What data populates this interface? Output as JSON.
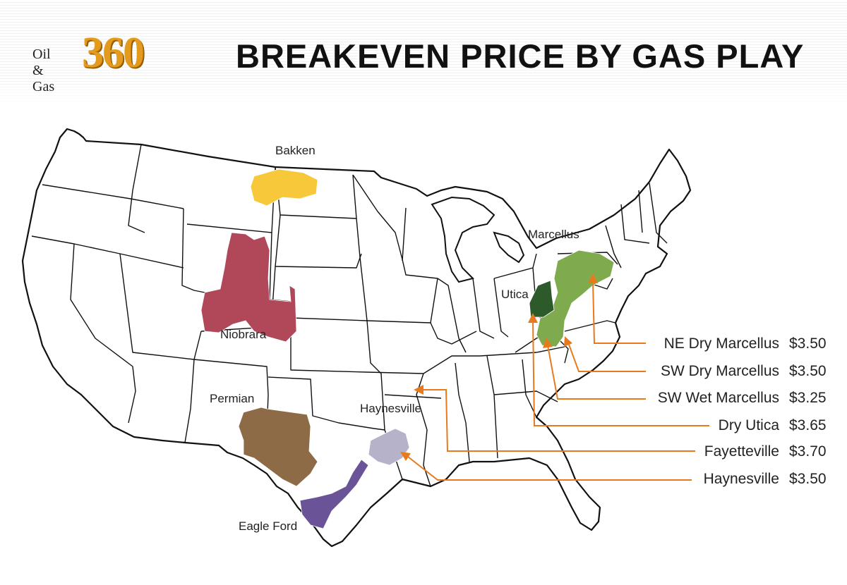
{
  "header": {
    "logo_small": "Oil & Gas",
    "logo_big": "360",
    "title": "BREAKEVEN PRICE BY GAS PLAY"
  },
  "colors": {
    "bakken": "#f7c83a",
    "niobrara": "#b0485a",
    "permian": "#8e6b47",
    "eagle_ford": "#6a5497",
    "haynesville": "#b5b2c9",
    "marcellus": "#7faa4e",
    "utica": "#2d5a2a",
    "arrow": "#e87a1e",
    "state_line": "#111111"
  },
  "map_labels": {
    "bakken": "Bakken",
    "niobrara": "Niobrara",
    "permian": "Permian",
    "eagle_ford": "Eagle Ford",
    "haynesville": "Haynesville",
    "marcellus": "Marcellus",
    "utica": "Utica"
  },
  "legend": [
    {
      "name": "NE Dry Marcellus",
      "price": "$3.50"
    },
    {
      "name": "SW Dry Marcellus",
      "price": "$3.50"
    },
    {
      "name": "SW Wet Marcellus",
      "price": "$3.25"
    },
    {
      "name": "Dry Utica",
      "price": "$3.65"
    },
    {
      "name": "Fayetteville",
      "price": "$3.70"
    },
    {
      "name": "Haynesville",
      "price": "$3.50"
    }
  ]
}
